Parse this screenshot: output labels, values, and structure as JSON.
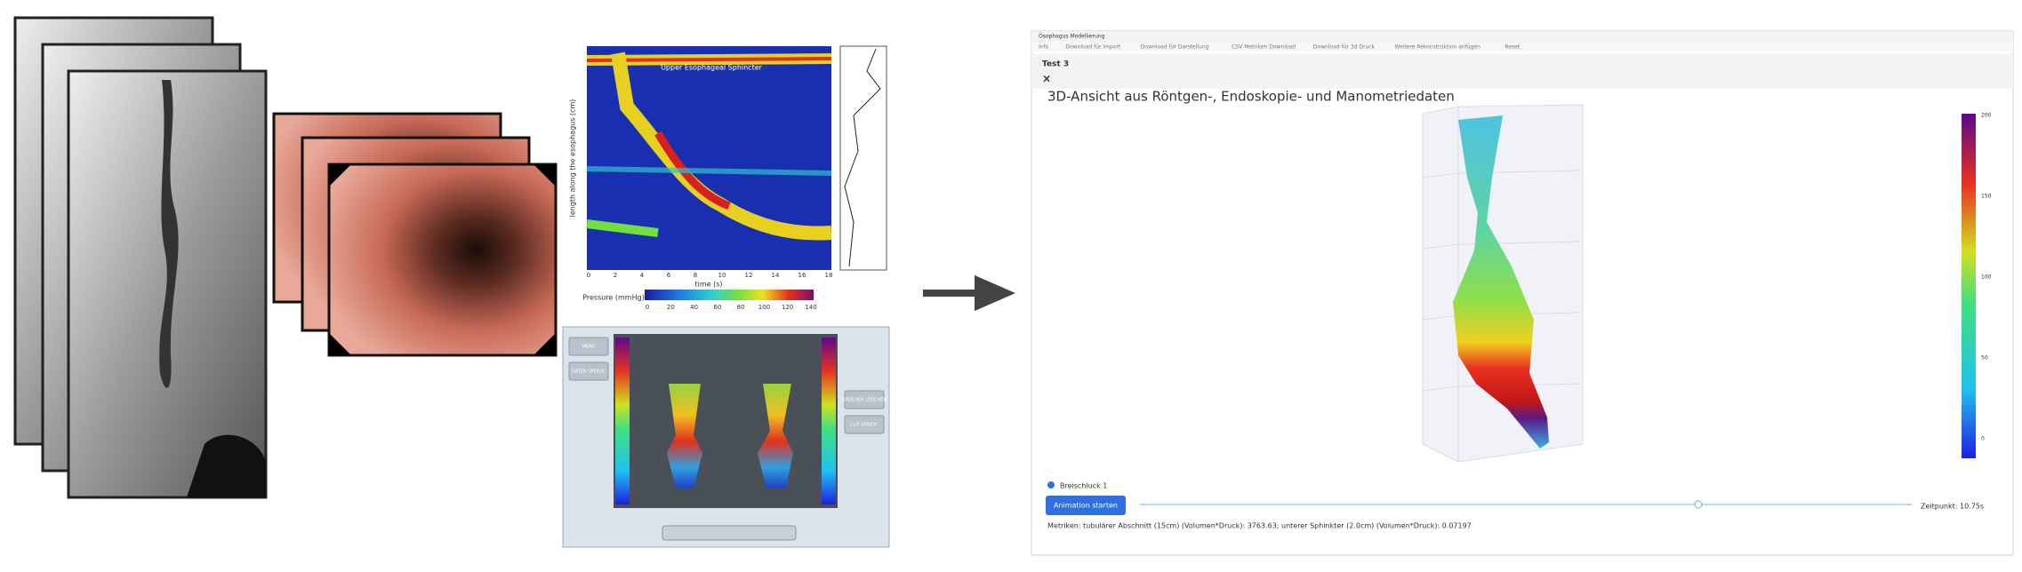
{
  "manometry": {
    "title": "Upper Esophageal Sphincter",
    "x_label": "time (s)",
    "y_label": "length along the esophagus (cm)",
    "x_ticks": [
      "0",
      "2",
      "4",
      "6",
      "8",
      "10",
      "12",
      "14",
      "16",
      "18"
    ],
    "legend_title": "Pressure (mmHg)",
    "legend_ticks": [
      "0",
      "20",
      "40",
      "60",
      "80",
      "100",
      "120",
      "140"
    ]
  },
  "device": {
    "buttons": [
      "MENÜ",
      "DATEN SPEICH.",
      "SPEICHER LÖSCHEN",
      "CLIP SPEICH."
    ]
  },
  "app": {
    "window_title": "Ösophagus Modellierung",
    "menu": [
      "Info",
      "Download für Import",
      "Download für Darstellung",
      "CSV Metriken Download",
      "Download für 3d Druck",
      "Weitere Rekonstruktion anfügen",
      "Reset"
    ],
    "tab": "Test 3",
    "close": "×",
    "heading": "3D-Ansicht aus Röntgen-, Endoskopie- und Manometriedaten",
    "colorbar_ticks": [
      "0",
      "50",
      "100",
      "150",
      "200"
    ],
    "swallow": "Breischluck 1",
    "button": "Animation starten",
    "time": "Zeitpunkt: 10.75s",
    "metrics": "Metriken: tubulärer Abschnitt (15cm) (Volumen*Druck): 3763.63; unterer Sphinkter (2.0cm) (Volumen*Druck): 0.07197"
  }
}
